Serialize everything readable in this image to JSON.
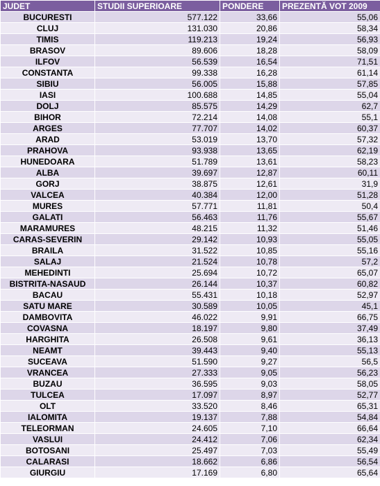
{
  "table": {
    "headers": [
      "JUDET",
      "STUDII SUPERIOARE",
      "PONDERE",
      "PREZENTĂ VOT 2009"
    ],
    "rows": [
      [
        "BUCURESTI",
        "577.122",
        "33,66",
        "55,06"
      ],
      [
        "CLUJ",
        "131.030",
        "20,86",
        "58,34"
      ],
      [
        "TIMIS",
        "119.213",
        "19,24",
        "56,93"
      ],
      [
        "BRASOV",
        "89.606",
        "18,28",
        "58,09"
      ],
      [
        "ILFOV",
        "56.539",
        "16,54",
        "71,51"
      ],
      [
        "CONSTANTA",
        "99.338",
        "16,28",
        "61,14"
      ],
      [
        "SIBIU",
        "56.005",
        "15,88",
        "57,85"
      ],
      [
        "IASI",
        "100.688",
        "14,85",
        "55,04"
      ],
      [
        "DOLJ",
        "85.575",
        "14,29",
        "62,7"
      ],
      [
        "BIHOR",
        "72.214",
        "14,08",
        "55,1"
      ],
      [
        "ARGES",
        "77.707",
        "14,02",
        "60,37"
      ],
      [
        "ARAD",
        "53.019",
        "13,70",
        "57,32"
      ],
      [
        "PRAHOVA",
        "93.938",
        "13,65",
        "62,19"
      ],
      [
        "HUNEDOARA",
        "51.789",
        "13,61",
        "58,23"
      ],
      [
        "ALBA",
        "39.697",
        "12,87",
        "60,11"
      ],
      [
        "GORJ",
        "38.875",
        "12,61",
        "31,9"
      ],
      [
        "VALCEA",
        "40.384",
        "12,00",
        "51,28"
      ],
      [
        "MURES",
        "57.771",
        "11,81",
        "50,4"
      ],
      [
        "GALATI",
        "56.463",
        "11,76",
        "55,67"
      ],
      [
        "MARAMURES",
        "48.215",
        "11,32",
        "51,46"
      ],
      [
        "CARAS-SEVERIN",
        "29.142",
        "10,93",
        "55,05"
      ],
      [
        "BRAILA",
        "31.522",
        "10,85",
        "55,16"
      ],
      [
        "SALAJ",
        "21.524",
        "10,78",
        "57,2"
      ],
      [
        "MEHEDINTI",
        "25.694",
        "10,72",
        "65,07"
      ],
      [
        "BISTRITA-NASAUD",
        "26.144",
        "10,37",
        "60,82"
      ],
      [
        "BACAU",
        "55.431",
        "10,18",
        "52,97"
      ],
      [
        "SATU MARE",
        "30.589",
        "10,05",
        "45,1"
      ],
      [
        "DAMBOVITA",
        "46.022",
        "9,91",
        "66,75"
      ],
      [
        "COVASNA",
        "18.197",
        "9,80",
        "37,49"
      ],
      [
        "HARGHITA",
        "26.508",
        "9,61",
        "36,13"
      ],
      [
        "NEAMT",
        "39.443",
        "9,40",
        "55,13"
      ],
      [
        "SUCEAVA",
        "51.590",
        "9,27",
        "56,5"
      ],
      [
        "VRANCEA",
        "27.333",
        "9,05",
        "56,23"
      ],
      [
        "BUZAU",
        "36.595",
        "9,03",
        "58,05"
      ],
      [
        "TULCEA",
        "17.097",
        "8,97",
        "52,77"
      ],
      [
        "OLT",
        "33.520",
        "8,46",
        "65,31"
      ],
      [
        "IALOMITA",
        "19.137",
        "7,88",
        "54,84"
      ],
      [
        "TELEORMAN",
        "24.605",
        "7,10",
        "66,64"
      ],
      [
        "VASLUI",
        "24.412",
        "7,06",
        "62,34"
      ],
      [
        "BOTOSANI",
        "25.497",
        "7,03",
        "55,49"
      ],
      [
        "CALARASI",
        "18.662",
        "6,86",
        "56,54"
      ],
      [
        "GIURGIU",
        "17.169",
        "6,80",
        "65,64"
      ]
    ]
  },
  "colors": {
    "header_bg": "#7b5e9f",
    "row_odd": "#ddd6e9",
    "row_even": "#eeeaf4"
  }
}
